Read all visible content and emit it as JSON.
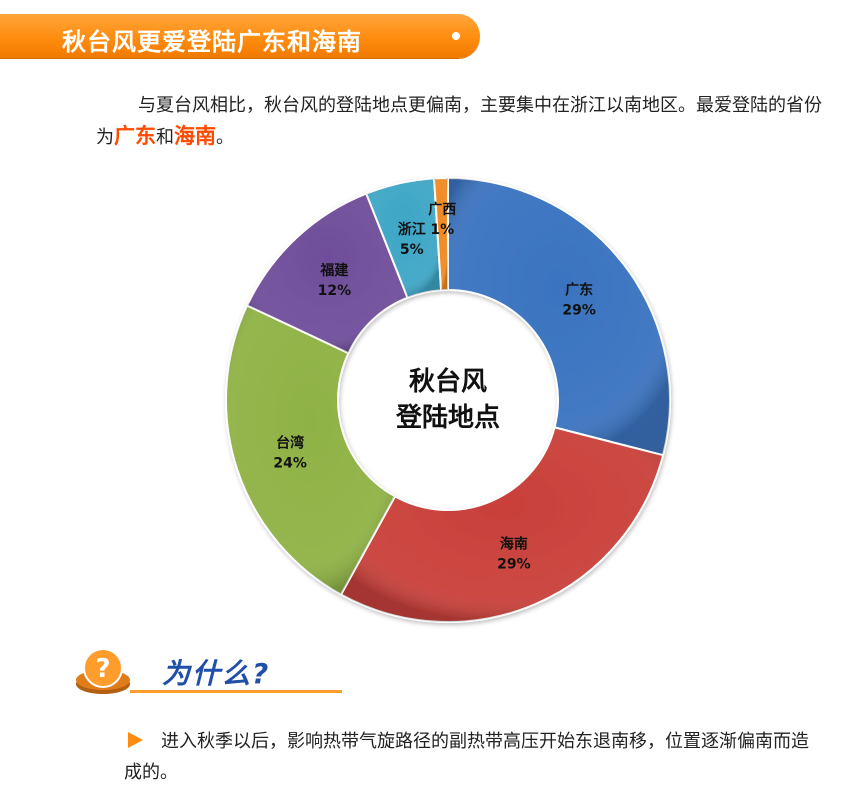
{
  "header": {
    "title": "秋台风更爱登陆广东和海南"
  },
  "intro": {
    "part1": "与夏台风相比，秋台风的登陆地点更偏南，主要集中在浙江以南地区。最爱登陆的省份为",
    "hl1": "广东",
    "mid": "和",
    "hl2": "海南",
    "end": "。"
  },
  "chart_data": {
    "type": "pie",
    "donut": true,
    "center_label": [
      "秋台风",
      "登陆地点"
    ],
    "categories": [
      "广东",
      "海南",
      "台湾",
      "福建",
      "浙江",
      "广西"
    ],
    "values": [
      29,
      29,
      24,
      12,
      5,
      1
    ],
    "labels": [
      "29%",
      "29%",
      "24%",
      "12%",
      "5%",
      "1%"
    ],
    "colors": [
      "#3a73c0",
      "#c9403a",
      "#8fb245",
      "#6f4e9a",
      "#3ea6c6",
      "#ef8a24"
    ],
    "start": "12 o'clock, clockwise",
    "legend": "none"
  },
  "why": {
    "title": "为什么?",
    "text": "进入秋季以后，影响热带气旋路径的副热带高压开始东退南移，位置逐渐偏南而造成的。",
    "badge_colors": {
      "ring": "#ff8c0f",
      "base": "#c26a12"
    },
    "accent": "#ff8c0f"
  }
}
